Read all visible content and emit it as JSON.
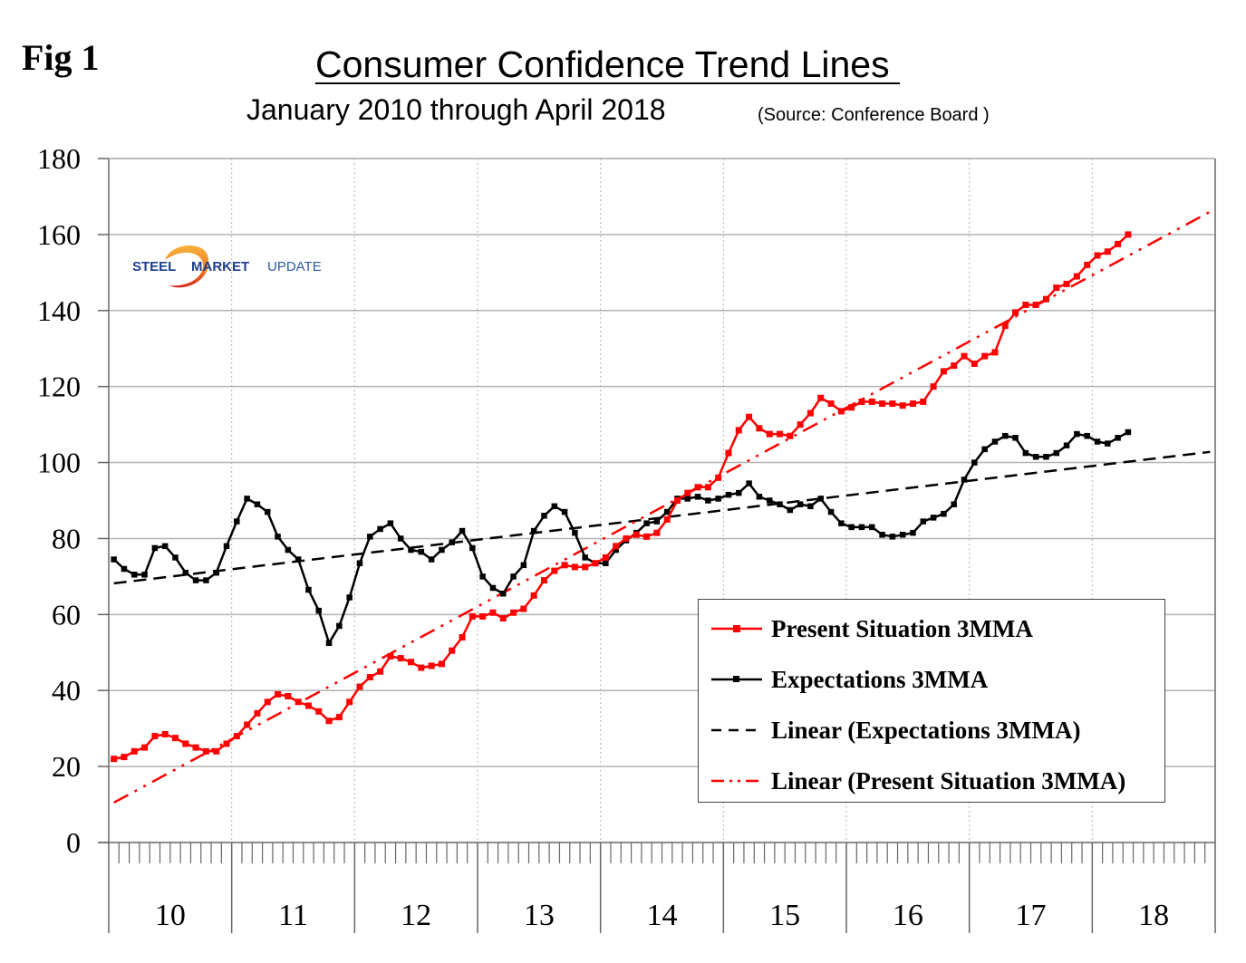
{
  "figure": {
    "label": "Fig 1",
    "title": "Consumer Confidence Trend Lines ",
    "subtitle": "January 2010 through April 2018",
    "source": "(Source: Conference Board )",
    "logo": {
      "word1": "STEEL",
      "word2": "MARKET",
      "word3": "UPDATE",
      "icon": "swoosh-icon"
    }
  },
  "colors": {
    "present": "#ff0000",
    "expectations": "#000000",
    "grid": "#b3b3b3",
    "axis": "#666666",
    "logo_blue": "#1c3f8c",
    "logo_orange": "#f39a1e"
  },
  "chart_data": {
    "type": "line",
    "title": "Consumer Confidence Trend Lines",
    "subtitle": "January 2010 through April 2018",
    "xlabel": "",
    "ylabel": "",
    "ylim": [
      0,
      180
    ],
    "yticks": [
      0,
      20,
      40,
      60,
      80,
      100,
      120,
      140,
      160,
      180
    ],
    "x_range_months": [
      0,
      108
    ],
    "x_start": "2010-01",
    "x_tick_labels": [
      "10",
      "11",
      "12",
      "13",
      "14",
      "15",
      "16",
      "17",
      "18"
    ],
    "grid": "horizontal solid, vertical dotted at year boundaries",
    "legend_position": "bottom-right",
    "series": [
      {
        "name": "Present Situation 3MMA",
        "style": "solid-with-square-markers",
        "color": "#ff0000",
        "values": [
          22,
          22.5,
          24,
          25,
          28,
          28.5,
          27.5,
          26,
          25,
          24,
          24,
          26,
          28,
          31,
          34,
          37,
          39,
          38.5,
          37,
          36,
          34.5,
          32,
          33,
          37,
          41,
          43.5,
          45,
          49,
          48.5,
          47.5,
          46,
          46.5,
          47,
          50.5,
          54,
          59.5,
          59.5,
          60.5,
          59,
          60.5,
          61.5,
          65,
          69,
          71.5,
          73,
          72.5,
          72.5,
          73.5,
          75,
          78,
          80,
          81,
          80.5,
          81.5,
          85,
          90,
          92,
          93.5,
          93.5,
          96,
          102.5,
          108.5,
          112,
          109,
          107.5,
          107.5,
          107,
          110,
          113,
          117,
          115.5,
          113.5,
          114.5,
          116,
          116,
          115.5,
          115.5,
          115,
          115.5,
          116,
          120,
          124,
          125.5,
          128,
          126,
          128,
          129,
          136,
          139.5,
          141.5,
          141.5,
          143,
          146,
          147,
          149,
          152,
          154.5,
          155.5,
          157.5,
          160
        ]
      },
      {
        "name": "Expectations 3MMA",
        "style": "solid-with-square-markers",
        "color": "#000000",
        "values": [
          74.5,
          72,
          70.5,
          70.5,
          77.5,
          78,
          75,
          71,
          69,
          69,
          71,
          78,
          84.5,
          90.5,
          89,
          87,
          80.5,
          77,
          74.5,
          66.5,
          61,
          52.5,
          57,
          64.5,
          73.5,
          80.5,
          82.5,
          84,
          80,
          77,
          76.5,
          74.5,
          77,
          79,
          82,
          77.5,
          70,
          67,
          65.5,
          70,
          73,
          82,
          86,
          88.5,
          87,
          81.5,
          75,
          73.5,
          73.5,
          77,
          79.5,
          81.5,
          84,
          84.5,
          87,
          90.5,
          90.5,
          91,
          90,
          90.5,
          91.5,
          92,
          94.5,
          91,
          90,
          89,
          87.5,
          89,
          88.5,
          90.5,
          87,
          84,
          83,
          83,
          83,
          81,
          80.5,
          81,
          81.5,
          84.5,
          85.5,
          86.5,
          89,
          95.5,
          100,
          103.5,
          105.5,
          107,
          106.5,
          102.5,
          101.5,
          101.5,
          102.5,
          104.5,
          107.5,
          107,
          105.5,
          105,
          106.5,
          108
        ]
      },
      {
        "name": "Linear (Expectations 3MMA)",
        "style": "dashed",
        "color": "#000000",
        "start": {
          "month": 0,
          "value": 68.2
        },
        "end": {
          "month": 107.5,
          "value": 102.8
        }
      },
      {
        "name": "Linear (Present Situation 3MMA)",
        "style": "dash-dot-dot",
        "color": "#ff0000",
        "start": {
          "month": 0,
          "value": 10.5
        },
        "end": {
          "month": 107.5,
          "value": 166
        }
      }
    ]
  },
  "legend": {
    "items": [
      {
        "label": "Present Situation 3MMA",
        "swatch": "red-line-square"
      },
      {
        "label": "Expectations 3MMA",
        "swatch": "black-line-square"
      },
      {
        "label": "Linear (Expectations 3MMA)",
        "swatch": "black-dashed"
      },
      {
        "label": "Linear (Present Situation 3MMA)",
        "swatch": "red-dash-dot"
      }
    ]
  }
}
